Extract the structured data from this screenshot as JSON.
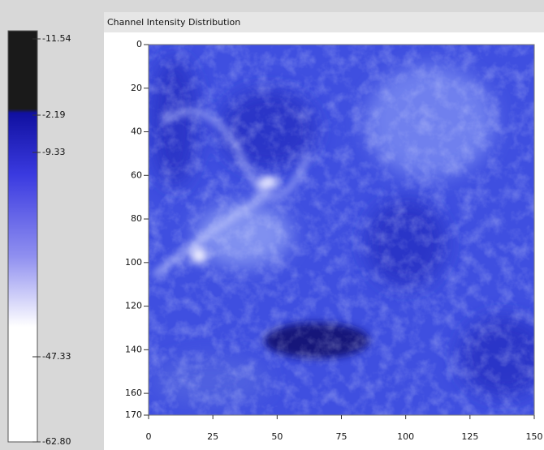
{
  "chart_data": {
    "type": "heatmap",
    "title": "Channel Intensity Distribution",
    "xlim": [
      0,
      150
    ],
    "xticks": [
      0,
      25,
      50,
      75,
      100,
      125,
      150
    ],
    "ylim": [
      0,
      170
    ],
    "y_inverted": true,
    "yticks": [
      0,
      20,
      40,
      60,
      80,
      100,
      120,
      140,
      160,
      170
    ],
    "colorbar_ticks": [
      -11.54,
      -2.19,
      -9.33,
      -47.33,
      {
        "value": -62.8,
        "label": "-62.80"
      }
    ],
    "color": "#3f4fe0"
  }
}
